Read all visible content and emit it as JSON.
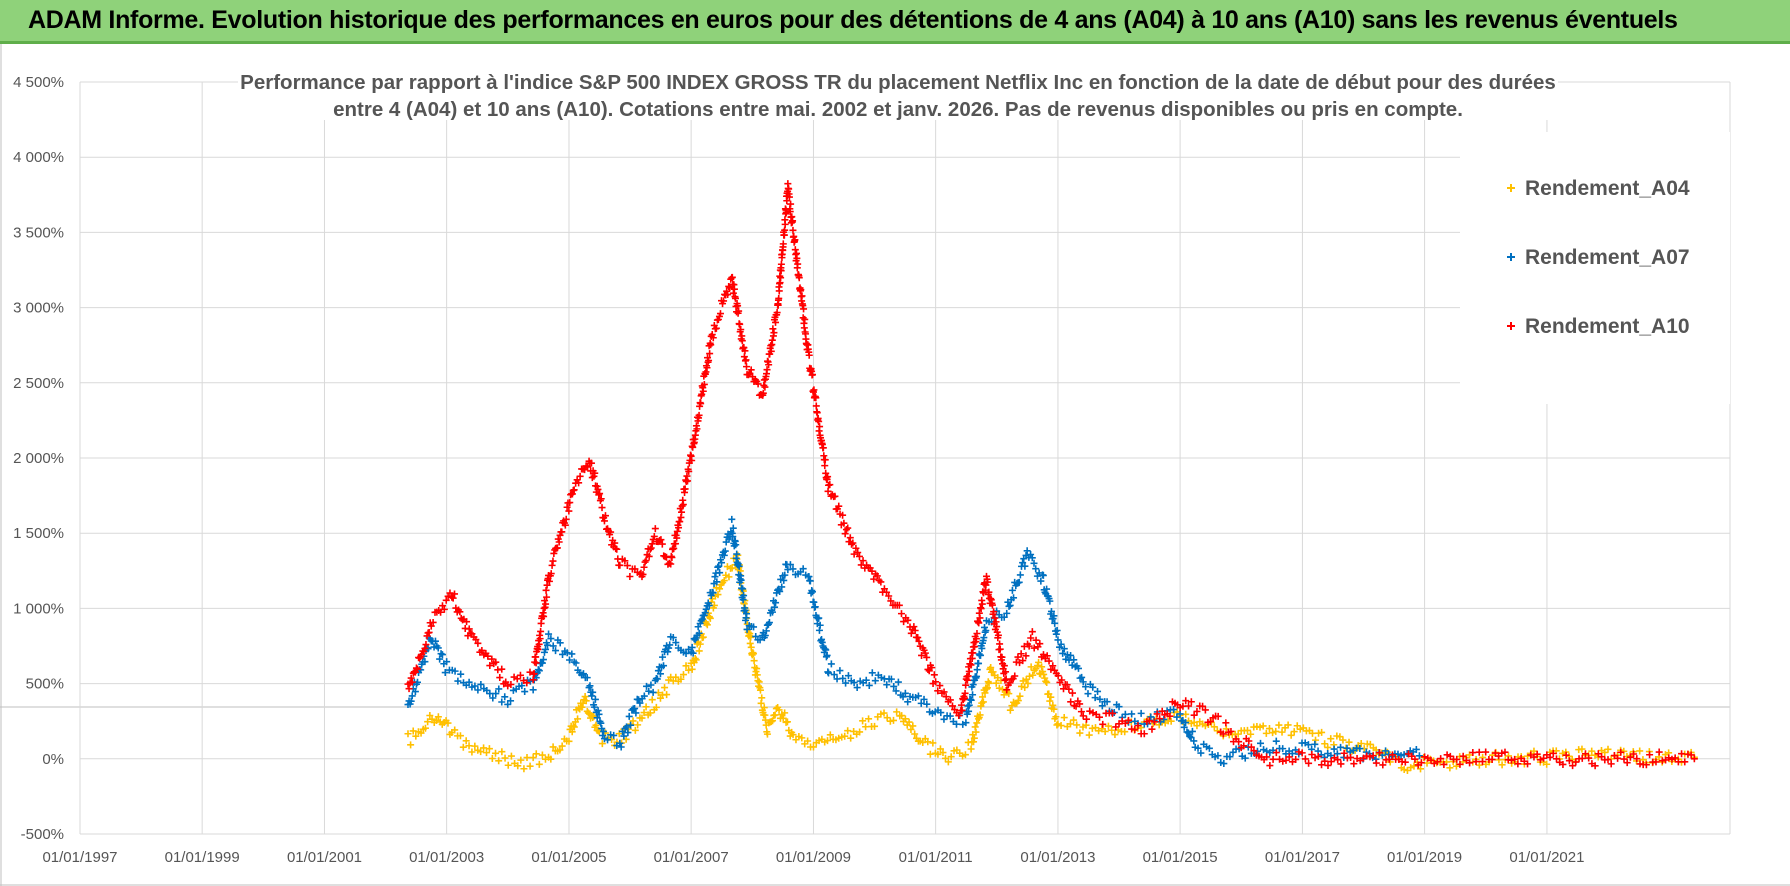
{
  "banner": {
    "title": "ADAM Informe. Evolution historique des performances en euros pour des détentions de 4 ans (A04) à 10 ans (A10) sans les revenus éventuels",
    "background": "#8fd27a"
  },
  "chart_data": {
    "type": "scatter",
    "title": "",
    "subtitle": [
      "Performance par rapport à l'indice S&P 500 INDEX GROSS TR  du placement Netflix Inc en fonction de la date de début pour des durées",
      "entre 4 (A04) et 10 ans (A10).  Cotations entre mai. 2002 et janv. 2026.  Pas de revenus disponibles ou pris en compte."
    ],
    "xlabel": "",
    "ylabel": "",
    "xlim": [
      "1997-01-01",
      "2023-12-31"
    ],
    "ylim": [
      -500,
      4500
    ],
    "x_ticks": [
      "01/01/1997",
      "01/01/1999",
      "01/01/2001",
      "01/01/2003",
      "01/01/2005",
      "01/01/2007",
      "01/01/2009",
      "01/01/2011",
      "01/01/2013",
      "01/01/2015",
      "01/01/2017",
      "01/01/2019",
      "01/01/2021"
    ],
    "y_ticks": [
      {
        "value": 4500,
        "label": "4 500%"
      },
      {
        "value": 4000,
        "label": "4 000%"
      },
      {
        "value": 3500,
        "label": "3 500%"
      },
      {
        "value": 3000,
        "label": "3 000%"
      },
      {
        "value": 2500,
        "label": "2 500%"
      },
      {
        "value": 2000,
        "label": "2 000%"
      },
      {
        "value": 1500,
        "label": "1 500%"
      },
      {
        "value": 1000,
        "label": "1 000%"
      },
      {
        "value": 500,
        "label": "500%"
      },
      {
        "value": 0,
        "label": "0%"
      },
      {
        "value": -500,
        "label": "-500%"
      }
    ],
    "grid": true,
    "legend_position": "top-right",
    "series": [
      {
        "name": "Rendement_A04",
        "color": "#ffc000",
        "marker": "plus",
        "points": [
          [
            "2002-05-15",
            120
          ],
          [
            "2002-08-01",
            180
          ],
          [
            "2002-11-01",
            300
          ],
          [
            "2003-02-01",
            160
          ],
          [
            "2003-06-01",
            80
          ],
          [
            "2003-10-01",
            20
          ],
          [
            "2004-03-01",
            -30
          ],
          [
            "2004-09-01",
            10
          ],
          [
            "2005-01-01",
            150
          ],
          [
            "2005-04-01",
            420
          ],
          [
            "2005-07-01",
            150
          ],
          [
            "2005-10-01",
            100
          ],
          [
            "2006-03-01",
            250
          ],
          [
            "2006-09-01",
            500
          ],
          [
            "2007-01-01",
            600
          ],
          [
            "2007-06-01",
            1100
          ],
          [
            "2007-10-01",
            1350
          ],
          [
            "2008-01-01",
            700
          ],
          [
            "2008-04-01",
            200
          ],
          [
            "2008-06-01",
            350
          ],
          [
            "2008-09-01",
            150
          ],
          [
            "2009-01-01",
            80
          ],
          [
            "2009-06-01",
            150
          ],
          [
            "2010-01-01",
            250
          ],
          [
            "2010-06-01",
            300
          ],
          [
            "2010-10-01",
            120
          ],
          [
            "2011-03-01",
            0
          ],
          [
            "2011-08-01",
            80
          ],
          [
            "2011-12-01",
            600
          ],
          [
            "2012-04-01",
            350
          ],
          [
            "2012-09-01",
            650
          ],
          [
            "2013-01-01",
            250
          ],
          [
            "2013-09-01",
            180
          ],
          [
            "2014-06-01",
            230
          ],
          [
            "2015-01-01",
            300
          ],
          [
            "2015-06-01",
            220
          ],
          [
            "2016-01-01",
            150
          ],
          [
            "2016-09-01",
            200
          ],
          [
            "2017-06-01",
            120
          ],
          [
            "2018-03-01",
            50
          ],
          [
            "2018-09-01",
            -50
          ],
          [
            "2019-06-01",
            -20
          ],
          [
            "2020-03-01",
            0
          ],
          [
            "2021-06-01",
            10
          ],
          [
            "2022-01-01",
            40
          ],
          [
            "2022-06-01",
            15
          ],
          [
            "2023-06-01",
            10
          ]
        ]
      },
      {
        "name": "Rendement_A07",
        "color": "#0070c0",
        "marker": "plus",
        "points": [
          [
            "2002-05-15",
            350
          ],
          [
            "2002-10-01",
            800
          ],
          [
            "2003-01-01",
            600
          ],
          [
            "2003-06-01",
            500
          ],
          [
            "2004-01-01",
            400
          ],
          [
            "2004-06-01",
            500
          ],
          [
            "2004-09-01",
            800
          ],
          [
            "2005-02-01",
            650
          ],
          [
            "2005-05-01",
            500
          ],
          [
            "2005-08-01",
            150
          ],
          [
            "2005-11-01",
            100
          ],
          [
            "2006-03-01",
            400
          ],
          [
            "2006-06-01",
            500
          ],
          [
            "2006-09-01",
            800
          ],
          [
            "2007-01-01",
            700
          ],
          [
            "2007-05-01",
            1100
          ],
          [
            "2007-09-01",
            1550
          ],
          [
            "2007-12-01",
            900
          ],
          [
            "2008-03-01",
            800
          ],
          [
            "2008-08-01",
            1300
          ],
          [
            "2008-12-01",
            1200
          ],
          [
            "2009-04-01",
            600
          ],
          [
            "2009-09-01",
            500
          ],
          [
            "2010-03-01",
            550
          ],
          [
            "2010-08-01",
            400
          ],
          [
            "2011-02-01",
            300
          ],
          [
            "2011-07-01",
            250
          ],
          [
            "2011-11-01",
            900
          ],
          [
            "2012-03-01",
            1000
          ],
          [
            "2012-07-01",
            1350
          ],
          [
            "2012-10-01",
            1200
          ],
          [
            "2013-01-01",
            800
          ],
          [
            "2013-06-01",
            500
          ],
          [
            "2014-01-01",
            300
          ],
          [
            "2014-06-01",
            250
          ],
          [
            "2015-01-01",
            300
          ],
          [
            "2015-04-01",
            100
          ],
          [
            "2015-09-01",
            0
          ],
          [
            "2016-06-01",
            80
          ],
          [
            "2017-06-01",
            50
          ],
          [
            "2018-06-01",
            30
          ],
          [
            "2018-12-01",
            20
          ]
        ]
      },
      {
        "name": "Rendement_A10",
        "color": "#ff0000",
        "marker": "plus",
        "points": [
          [
            "2002-05-15",
            450
          ],
          [
            "2002-10-01",
            900
          ],
          [
            "2003-02-01",
            1100
          ],
          [
            "2003-06-01",
            800
          ],
          [
            "2004-01-01",
            500
          ],
          [
            "2004-06-01",
            550
          ],
          [
            "2004-09-01",
            1200
          ],
          [
            "2005-02-01",
            1800
          ],
          [
            "2005-05-01",
            2000
          ],
          [
            "2005-08-01",
            1600
          ],
          [
            "2005-11-01",
            1300
          ],
          [
            "2006-03-01",
            1200
          ],
          [
            "2006-06-01",
            1500
          ],
          [
            "2006-09-01",
            1300
          ],
          [
            "2007-01-01",
            2000
          ],
          [
            "2007-05-01",
            2800
          ],
          [
            "2007-09-01",
            3200
          ],
          [
            "2007-12-01",
            2600
          ],
          [
            "2008-03-01",
            2400
          ],
          [
            "2008-06-01",
            3000
          ],
          [
            "2008-08-01",
            3800
          ],
          [
            "2008-12-01",
            2700
          ],
          [
            "2009-04-01",
            1800
          ],
          [
            "2009-09-01",
            1400
          ],
          [
            "2010-03-01",
            1100
          ],
          [
            "2010-08-01",
            900
          ],
          [
            "2011-01-01",
            500
          ],
          [
            "2011-06-01",
            300
          ],
          [
            "2011-11-01",
            1200
          ],
          [
            "2012-03-01",
            500
          ],
          [
            "2012-08-01",
            800
          ],
          [
            "2012-12-01",
            600
          ],
          [
            "2013-06-01",
            300
          ],
          [
            "2014-01-01",
            250
          ],
          [
            "2014-06-01",
            200
          ],
          [
            "2015-01-01",
            380
          ],
          [
            "2015-06-01",
            300
          ],
          [
            "2016-01-01",
            120
          ],
          [
            "2016-06-01",
            0
          ],
          [
            "2018-01-01",
            0
          ],
          [
            "2020-01-01",
            0
          ],
          [
            "2022-01-01",
            0
          ],
          [
            "2023-06-01",
            0
          ]
        ]
      }
    ]
  }
}
